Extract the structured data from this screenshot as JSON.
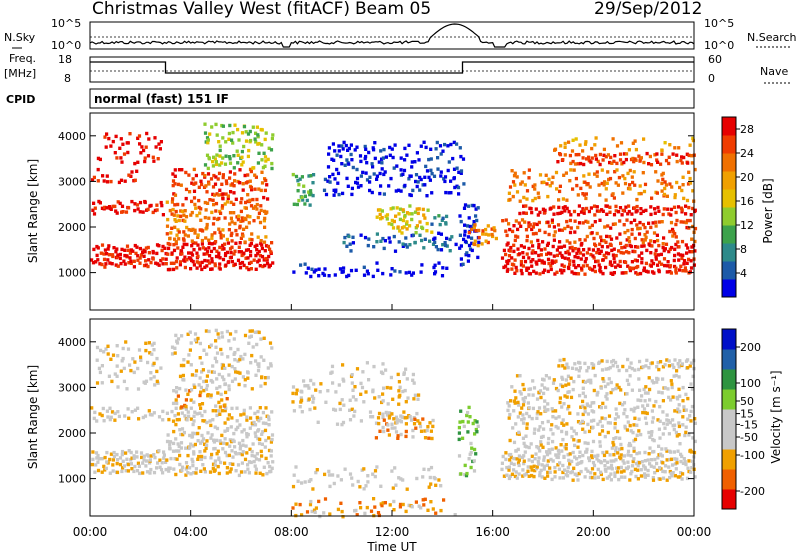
{
  "header": {
    "title": "Christmas Valley West (fitACF)",
    "beam": "Beam 05",
    "date": "29/Sep/2012"
  },
  "sky_panel": {
    "left_label": "N.Sky",
    "right_label": "N.Search",
    "left_ticks": [
      "10^5",
      "10^0"
    ],
    "right_ticks": [
      "10^5",
      "10^0"
    ]
  },
  "freq_panel": {
    "left_label_1": "Freq.",
    "left_label_2": "[MHz]",
    "right_label": "Nave",
    "left_ticks": [
      "18",
      "8"
    ],
    "right_ticks": [
      "60",
      "0"
    ]
  },
  "cpid": {
    "label": "CPID",
    "text": "normal (fast) 151 IF"
  },
  "colors": {
    "power_scale": [
      "#0000e6",
      "#1c5aa8",
      "#2d8a8a",
      "#3ca24b",
      "#8fcc2e",
      "#e6c000",
      "#f0a000",
      "#f07000",
      "#f03c00",
      "#e60000"
    ],
    "velocity_scale": [
      "#e60000",
      "#f06000",
      "#f0a000",
      "#c8c8c8",
      "#c8c8c8",
      "#7ccc2e",
      "#2e9440",
      "#2060a8",
      "#0010c8"
    ]
  },
  "chart_data": [
    {
      "type": "heatmap",
      "name": "power",
      "ylabel": "Slant Range [km]",
      "yticks": [
        "1000",
        "2000",
        "3000",
        "4000"
      ],
      "ylim": [
        180,
        4500
      ],
      "xlim": [
        "00:00",
        "24:00"
      ],
      "colorbar_label": "Power [dB]",
      "colorbar_ticks": [
        "4",
        "8",
        "12",
        "16",
        "20",
        "24",
        "28"
      ],
      "colorbar_range": [
        0,
        30
      ],
      "bands": [
        {
          "t0": 0.0,
          "t1": 2.9,
          "r0": 2300,
          "r1": 2600,
          "c": 9,
          "d": 0.9
        },
        {
          "t0": 0.0,
          "t1": 1.8,
          "r0": 3000,
          "r1": 3300,
          "c": 9,
          "d": 0.55
        },
        {
          "t0": 0.0,
          "t1": 3.0,
          "r0": 1150,
          "r1": 1650,
          "c": 9,
          "d": 0.92
        },
        {
          "t0": 0.2,
          "t1": 2.8,
          "r0": 3400,
          "r1": 4100,
          "c": 9,
          "d": 0.35
        },
        {
          "t0": 3.0,
          "t1": 7.2,
          "r0": 1100,
          "r1": 1700,
          "c": 9,
          "d": 0.9
        },
        {
          "t0": 3.0,
          "t1": 7.0,
          "r0": 1700,
          "r1": 2600,
          "c": 7,
          "d": 0.7
        },
        {
          "t0": 3.2,
          "t1": 7.0,
          "r0": 2600,
          "r1": 3300,
          "c": 8,
          "d": 0.6
        },
        {
          "t0": 4.5,
          "t1": 7.2,
          "r0": 3300,
          "r1": 4300,
          "c": 4,
          "d": 0.55
        },
        {
          "t0": 8.0,
          "t1": 8.9,
          "r0": 2500,
          "r1": 3200,
          "c": 3,
          "d": 0.7
        },
        {
          "t0": 8.0,
          "t1": 14.2,
          "r0": 950,
          "r1": 1250,
          "c": 0,
          "d": 0.55
        },
        {
          "t0": 9.2,
          "t1": 14.8,
          "r0": 2700,
          "r1": 3900,
          "c": 0,
          "d": 0.4
        },
        {
          "t0": 10.0,
          "t1": 14.5,
          "r0": 1500,
          "r1": 1900,
          "c": 1,
          "d": 0.45
        },
        {
          "t0": 11.3,
          "t1": 13.6,
          "r0": 1900,
          "r1": 2500,
          "c": 5,
          "d": 0.55
        },
        {
          "t0": 13.5,
          "t1": 14.2,
          "r0": 2050,
          "r1": 2300,
          "c": 2,
          "d": 0.7
        },
        {
          "t0": 14.6,
          "t1": 15.4,
          "r0": 1200,
          "r1": 2600,
          "c": 0,
          "d": 0.6
        },
        {
          "t0": 15.0,
          "t1": 16.1,
          "r0": 1600,
          "r1": 2100,
          "c": 7,
          "d": 0.7
        },
        {
          "t0": 16.3,
          "t1": 24.0,
          "r0": 1000,
          "r1": 1650,
          "c": 9,
          "d": 0.9
        },
        {
          "t0": 16.3,
          "t1": 24.0,
          "r0": 1650,
          "r1": 2200,
          "c": 8,
          "d": 0.6
        },
        {
          "t0": 17.0,
          "t1": 24.0,
          "r0": 2300,
          "r1": 2500,
          "c": 9,
          "d": 0.8
        },
        {
          "t0": 16.5,
          "t1": 24.0,
          "r0": 2600,
          "r1": 3300,
          "c": 7,
          "d": 0.4
        },
        {
          "t0": 18.5,
          "t1": 24.0,
          "r0": 3400,
          "r1": 3650,
          "c": 8,
          "d": 0.75
        },
        {
          "t0": 18.3,
          "t1": 24.0,
          "r0": 3700,
          "r1": 4000,
          "c": 6,
          "d": 0.3
        }
      ]
    },
    {
      "type": "heatmap",
      "name": "velocity",
      "ylabel": "Slant Range [km]",
      "xlabel": "Time UT",
      "xticks": [
        "00:00",
        "04:00",
        "08:00",
        "12:00",
        "16:00",
        "20:00",
        "00:00"
      ],
      "yticks": [
        "1000",
        "2000",
        "3000",
        "4000"
      ],
      "ylim": [
        180,
        4500
      ],
      "xlim": [
        "00:00",
        "24:00"
      ],
      "colorbar_label": "Velocity [m s⁻¹]",
      "colorbar_ticks": [
        "200",
        "100",
        "50",
        "15",
        "-15",
        "-50",
        "-100",
        "-200"
      ],
      "colorbar_range": [
        -250,
        250
      ],
      "bands": [
        {
          "t0": 0.0,
          "t1": 3.0,
          "r0": 1150,
          "r1": 1650,
          "c": 3,
          "d": 0.9
        },
        {
          "t0": 0.0,
          "t1": 2.9,
          "r0": 2300,
          "r1": 2600,
          "c": 3,
          "d": 0.75
        },
        {
          "t0": 0.2,
          "t1": 2.8,
          "r0": 3000,
          "r1": 4100,
          "c": 3,
          "d": 0.35
        },
        {
          "t0": 3.0,
          "t1": 7.2,
          "r0": 1100,
          "r1": 2600,
          "c": 3,
          "d": 0.65
        },
        {
          "t0": 3.2,
          "t1": 5.5,
          "r0": 2600,
          "r1": 3000,
          "c": 2,
          "d": 0.45
        },
        {
          "t0": 3.2,
          "t1": 7.2,
          "r0": 3000,
          "r1": 4300,
          "c": 3,
          "d": 0.45
        },
        {
          "t0": 8.0,
          "t1": 9.0,
          "r0": 2500,
          "r1": 3200,
          "c": 3,
          "d": 0.7
        },
        {
          "t0": 9.0,
          "t1": 13.0,
          "r0": 2200,
          "r1": 3600,
          "c": 3,
          "d": 0.25
        },
        {
          "t0": 11.3,
          "t1": 13.6,
          "r0": 1900,
          "r1": 2400,
          "c": 2,
          "d": 0.55
        },
        {
          "t0": 8.0,
          "t1": 14.5,
          "r0": 200,
          "r1": 600,
          "c": 2,
          "d": 0.35
        },
        {
          "t0": 8.0,
          "t1": 14.0,
          "r0": 800,
          "r1": 1300,
          "c": 3,
          "d": 0.25
        },
        {
          "t0": 14.6,
          "t1": 15.4,
          "r0": 1000,
          "r1": 2600,
          "c": 5,
          "d": 0.5
        },
        {
          "t0": 16.3,
          "t1": 24.0,
          "r0": 1000,
          "r1": 1650,
          "c": 3,
          "d": 0.9
        },
        {
          "t0": 16.5,
          "t1": 24.0,
          "r0": 1650,
          "r1": 3300,
          "c": 3,
          "d": 0.45
        },
        {
          "t0": 18.5,
          "t1": 24.0,
          "r0": 3400,
          "r1": 3650,
          "c": 3,
          "d": 0.75
        }
      ]
    }
  ]
}
